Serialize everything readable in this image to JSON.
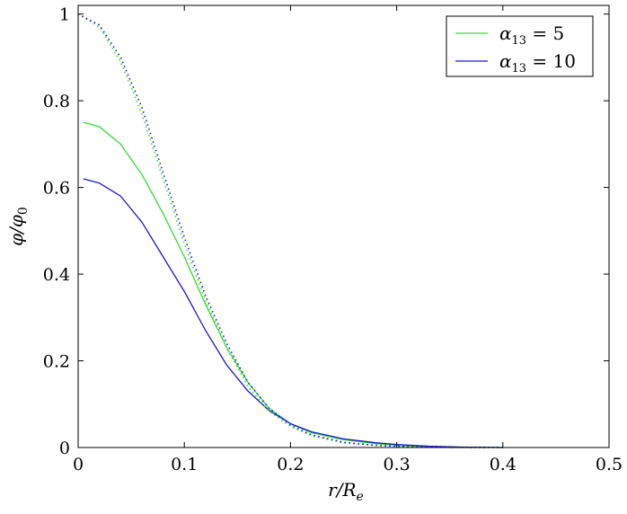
{
  "chart_data": {
    "type": "line",
    "xlabel": "r/R_e",
    "ylabel": "φ/φ_0",
    "xlim": [
      0,
      0.5
    ],
    "ylim": [
      0,
      1.02
    ],
    "x_ticks": [
      "0",
      "0.1",
      "0.2",
      "0.3",
      "0.4",
      "0.5"
    ],
    "y_ticks": [
      "0",
      "0.2",
      "0.4",
      "0.6",
      "0.8",
      "1"
    ],
    "grid": false,
    "legend_position": "top-right",
    "series": [
      {
        "name": "α13 = 5",
        "color": "#33dd33",
        "style": "solid",
        "x": [
          0.005,
          0.02,
          0.04,
          0.06,
          0.08,
          0.1,
          0.12,
          0.14,
          0.16,
          0.18,
          0.2,
          0.22,
          0.25,
          0.28,
          0.3,
          0.33,
          0.36,
          0.4
        ],
        "y": [
          0.75,
          0.74,
          0.7,
          0.63,
          0.54,
          0.44,
          0.33,
          0.23,
          0.15,
          0.09,
          0.055,
          0.034,
          0.018,
          0.009,
          0.005,
          0.002,
          0.001,
          0.0
        ]
      },
      {
        "name": "α13 = 10",
        "color": "#1a1acc",
        "style": "solid",
        "x": [
          0.005,
          0.02,
          0.04,
          0.06,
          0.08,
          0.1,
          0.12,
          0.14,
          0.16,
          0.18,
          0.2,
          0.22,
          0.25,
          0.28,
          0.3,
          0.33,
          0.36,
          0.4
        ],
        "y": [
          0.62,
          0.61,
          0.58,
          0.52,
          0.44,
          0.36,
          0.27,
          0.19,
          0.13,
          0.085,
          0.055,
          0.036,
          0.02,
          0.011,
          0.007,
          0.003,
          0.001,
          0.0
        ]
      },
      {
        "color": "#33dd33",
        "style": "dotted",
        "x": [
          0.0,
          0.02,
          0.04,
          0.06,
          0.08,
          0.1,
          0.12,
          0.14,
          0.16,
          0.18,
          0.2,
          0.22,
          0.25,
          0.28,
          0.3,
          0.33,
          0.36,
          0.4
        ],
        "y": [
          1.0,
          0.97,
          0.89,
          0.77,
          0.62,
          0.47,
          0.34,
          0.23,
          0.14,
          0.083,
          0.048,
          0.027,
          0.011,
          0.005,
          0.003,
          0.001,
          0.0003,
          0.0
        ]
      },
      {
        "color": "#1a1acc",
        "style": "dotted",
        "x": [
          0.0,
          0.02,
          0.04,
          0.06,
          0.08,
          0.1,
          0.12,
          0.14,
          0.16,
          0.18,
          0.2,
          0.22,
          0.25,
          0.28,
          0.3,
          0.33,
          0.36,
          0.4
        ],
        "y": [
          1.0,
          0.975,
          0.9,
          0.785,
          0.635,
          0.485,
          0.35,
          0.24,
          0.15,
          0.09,
          0.052,
          0.029,
          0.012,
          0.005,
          0.003,
          0.001,
          0.0003,
          0.0
        ]
      }
    ]
  }
}
